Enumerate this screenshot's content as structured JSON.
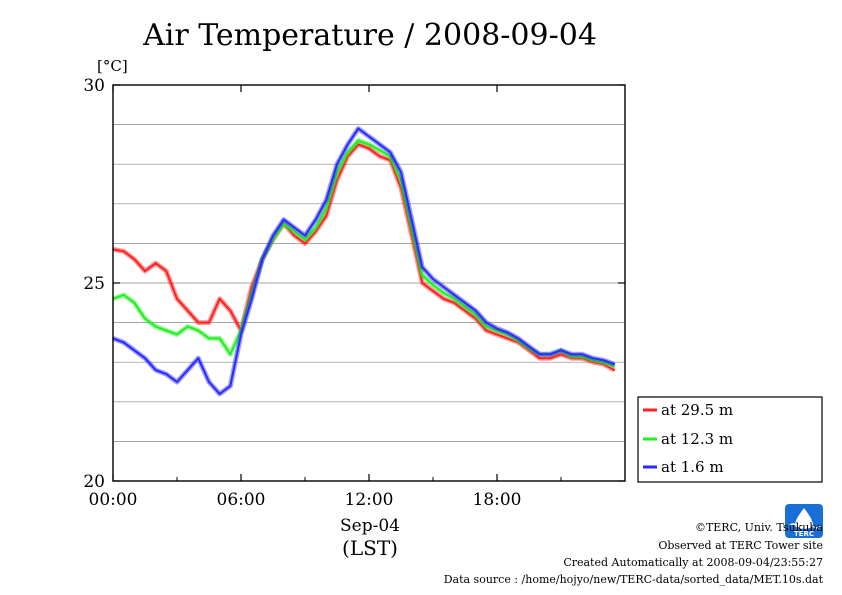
{
  "page": {
    "title": "Air Temperature / 2008-09-04",
    "unit_label": "[°C]",
    "x_sublabel_date": "Sep-04",
    "x_sublabel_zone": "(LST)"
  },
  "footer": {
    "copyright": "©TERC, Univ. Tsukuba",
    "observed": "Observed at TERC Tower site",
    "created": "Created Automatically at 2008-09-04/23:55:27",
    "source": "Data source : /home/hojyo/new/TERC-data/sorted_data/MET.10s.dat",
    "logo_text": "TERC",
    "logo_color": "#1a6fd6"
  },
  "chart_data": {
    "type": "line",
    "title": "Air Temperature / 2008-09-04",
    "ylabel": "[°C]",
    "xlabel": "Sep-04 (LST)",
    "xlim": [
      0,
      24
    ],
    "ylim": [
      20,
      30
    ],
    "x_ticks": [
      {
        "value": 0,
        "label": "00:00"
      },
      {
        "value": 6,
        "label": "06:00"
      },
      {
        "value": 12,
        "label": "12:00"
      },
      {
        "value": 18,
        "label": "18:00"
      }
    ],
    "y_ticks": [
      {
        "value": 20,
        "label": "20"
      },
      {
        "value": 25,
        "label": "25"
      },
      {
        "value": 30,
        "label": "30"
      }
    ],
    "grid_y_values": [
      21,
      22,
      23,
      24,
      25,
      26,
      27,
      28,
      29
    ],
    "grid": true,
    "legend_position": "right",
    "x": [
      0,
      0.5,
      1,
      1.5,
      2,
      2.5,
      3,
      3.5,
      4,
      4.5,
      5,
      5.5,
      6,
      6.5,
      7,
      7.5,
      8,
      8.5,
      9,
      9.5,
      10,
      10.5,
      11,
      11.5,
      12,
      12.5,
      13,
      13.5,
      14,
      14.5,
      15,
      15.5,
      16,
      16.5,
      17,
      17.5,
      18,
      18.5,
      19,
      19.5,
      20,
      20.5,
      21,
      21.5,
      22,
      22.5,
      23,
      23.5
    ],
    "series": [
      {
        "name": "at 29.5 m",
        "color": "#ff2020",
        "values": [
          25.85,
          25.8,
          25.6,
          25.3,
          25.5,
          25.3,
          24.6,
          24.3,
          24.0,
          24.0,
          24.6,
          24.3,
          23.8,
          24.9,
          25.6,
          26.1,
          26.5,
          26.2,
          26.0,
          26.3,
          26.7,
          27.6,
          28.2,
          28.5,
          28.4,
          28.2,
          28.1,
          27.4,
          26.2,
          25.0,
          24.8,
          24.6,
          24.5,
          24.3,
          24.1,
          23.8,
          23.7,
          23.6,
          23.5,
          23.3,
          23.1,
          23.1,
          23.2,
          23.1,
          23.1,
          23.0,
          22.95,
          22.8
        ]
      },
      {
        "name": "at 12.3 m",
        "color": "#22ee22",
        "values": [
          24.6,
          24.7,
          24.5,
          24.1,
          23.9,
          23.8,
          23.7,
          23.9,
          23.8,
          23.6,
          23.6,
          23.2,
          23.8,
          24.7,
          25.6,
          26.1,
          26.5,
          26.3,
          26.1,
          26.4,
          26.9,
          27.8,
          28.3,
          28.6,
          28.5,
          28.35,
          28.2,
          27.6,
          26.4,
          25.2,
          24.95,
          24.75,
          24.6,
          24.4,
          24.2,
          23.9,
          23.8,
          23.7,
          23.55,
          23.35,
          23.2,
          23.2,
          23.3,
          23.15,
          23.15,
          23.05,
          23.0,
          22.9
        ]
      },
      {
        "name": "at 1.6 m",
        "color": "#2a2aff",
        "values": [
          23.6,
          23.5,
          23.3,
          23.1,
          22.8,
          22.7,
          22.5,
          22.8,
          23.1,
          22.5,
          22.2,
          22.4,
          23.7,
          24.6,
          25.6,
          26.2,
          26.6,
          26.4,
          26.2,
          26.6,
          27.1,
          28.0,
          28.5,
          28.9,
          28.7,
          28.5,
          28.3,
          27.8,
          26.6,
          25.4,
          25.1,
          24.9,
          24.7,
          24.5,
          24.3,
          24.0,
          23.85,
          23.75,
          23.6,
          23.4,
          23.2,
          23.2,
          23.3,
          23.2,
          23.2,
          23.1,
          23.05,
          22.95
        ]
      }
    ]
  }
}
